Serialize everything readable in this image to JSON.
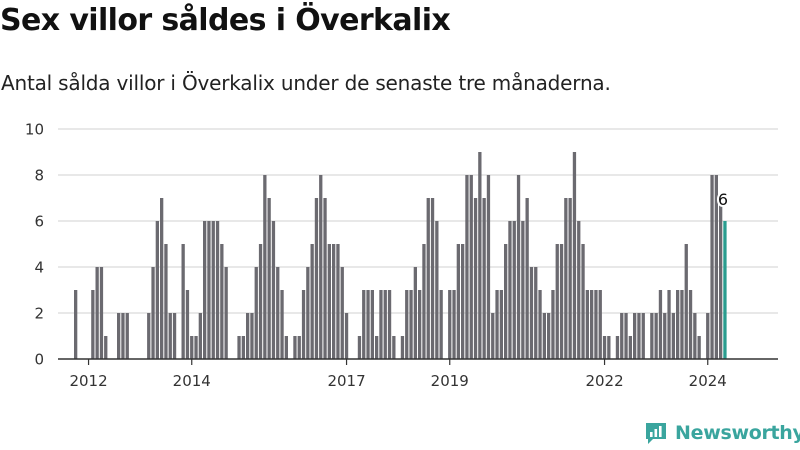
{
  "title": "Sex villor såldes i Överkalix",
  "subtitle": "Antal sålda villor i Överkalix under de senaste tre månaderna.",
  "brand": {
    "name": "Newsworthy",
    "icon": "newsworthy-logo-icon"
  },
  "colors": {
    "bar": "#6b6a70",
    "highlight": "#2a9d8f",
    "grid": "#d9d9d9",
    "axis": "#333333",
    "brand": "#3aa59e"
  },
  "chart_data": {
    "type": "bar",
    "title": "Sex villor såldes i Överkalix",
    "subtitle": "Antal sålda villor i Överkalix under de senaste tre månaderna.",
    "xlabel": "",
    "ylabel": "",
    "ylim": [
      0,
      10
    ],
    "yticks": [
      "0",
      "2",
      "4",
      "6",
      "8",
      "10"
    ],
    "ytick_values": [
      0,
      2,
      4,
      6,
      8,
      10
    ],
    "xticks": [
      {
        "label": "2012",
        "index": 3
      },
      {
        "label": "2014",
        "index": 27
      },
      {
        "label": "2017",
        "index": 63
      },
      {
        "label": "2019",
        "index": 87
      },
      {
        "label": "2022",
        "index": 123
      },
      {
        "label": "2024",
        "index": 147
      }
    ],
    "values": [
      3,
      0,
      0,
      0,
      3,
      4,
      4,
      1,
      0,
      0,
      2,
      2,
      2,
      0,
      0,
      0,
      0,
      2,
      4,
      6,
      7,
      5,
      2,
      2,
      0,
      5,
      3,
      1,
      1,
      2,
      6,
      6,
      6,
      6,
      5,
      4,
      0,
      0,
      1,
      1,
      2,
      2,
      4,
      5,
      8,
      7,
      6,
      4,
      3,
      1,
      0,
      1,
      1,
      3,
      4,
      5,
      7,
      8,
      7,
      5,
      5,
      5,
      4,
      2,
      0,
      0,
      1,
      3,
      3,
      3,
      1,
      3,
      3,
      3,
      1,
      0,
      1,
      3,
      3,
      4,
      3,
      5,
      7,
      7,
      6,
      3,
      0,
      3,
      3,
      5,
      5,
      8,
      8,
      7,
      9,
      7,
      8,
      2,
      3,
      3,
      5,
      6,
      6,
      8,
      6,
      7,
      4,
      4,
      3,
      2,
      2,
      3,
      5,
      5,
      7,
      7,
      9,
      6,
      5,
      3,
      3,
      3,
      3,
      1,
      1,
      0,
      1,
      2,
      2,
      1,
      2,
      2,
      2,
      0,
      2,
      2,
      3,
      2,
      3,
      2,
      3,
      3,
      5,
      3,
      2,
      1,
      0,
      2,
      8,
      8,
      7,
      6
    ],
    "highlight_last": true,
    "annotation": {
      "text": "6",
      "target": "last"
    }
  }
}
